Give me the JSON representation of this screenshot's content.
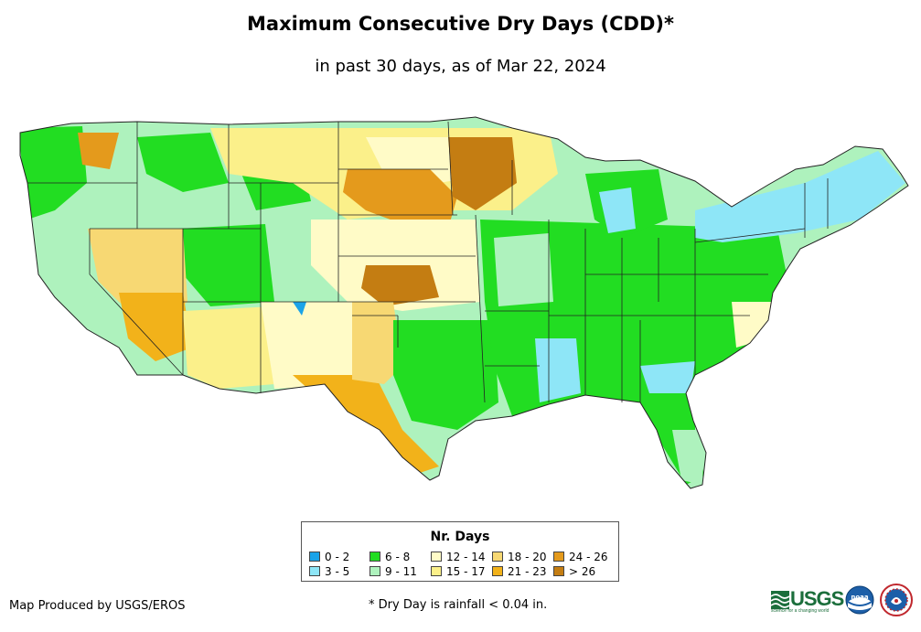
{
  "title": "Maximum Consecutive Dry Days (CDD)*",
  "subtitle": "in past 30 days, as of Mar 22, 2024",
  "legend": {
    "title": "Nr. Days",
    "items": [
      {
        "label": "0 - 2",
        "color": "#1aa3e8"
      },
      {
        "label": "3 - 5",
        "color": "#8ee6f7"
      },
      {
        "label": "6 - 8",
        "color": "#22dd22"
      },
      {
        "label": "9 - 11",
        "color": "#aef2bd"
      },
      {
        "label": "12 - 14",
        "color": "#fffbc7"
      },
      {
        "label": "15 - 17",
        "color": "#fbf08a"
      },
      {
        "label": "18 - 20",
        "color": "#f7d873"
      },
      {
        "label": "21 - 23",
        "color": "#f2b21a"
      },
      {
        "label": "24 - 26",
        "color": "#e49a1c"
      },
      {
        "label": "> 26",
        "color": "#c47d12"
      }
    ]
  },
  "credit": "Map Produced by USGS/EROS",
  "footnote": "* Dry Day is rainfall < 0.04 in.",
  "logos": {
    "usgs": "USGS",
    "usgs_tagline": "science for a changing world",
    "noaa": "noaa"
  }
}
